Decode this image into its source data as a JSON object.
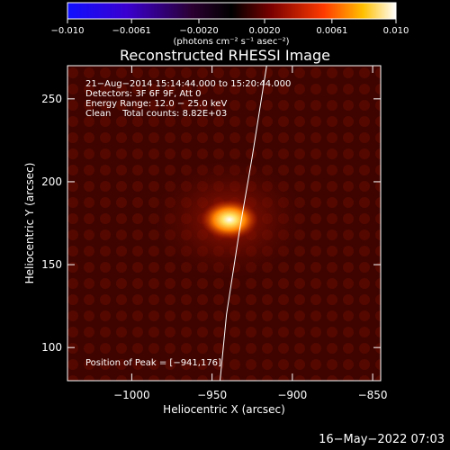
{
  "chart_data": {
    "type": "heatmap",
    "title": "Reconstructed RHESSI Image",
    "xlabel": "Heliocentric X (arcsec)",
    "ylabel": "Heliocentric Y (arcsec)",
    "xlim": [
      -1040,
      -845
    ],
    "ylim": [
      80,
      270
    ],
    "xticks": [
      -1000,
      -950,
      -900,
      -850
    ],
    "yticks": [
      100,
      150,
      200,
      250
    ],
    "colorbar": {
      "ticks": [
        -0.01,
        -0.0061,
        -0.002,
        0.002,
        0.0061,
        0.01
      ],
      "tick_labels": [
        "−0.010",
        "−0.0061",
        "−0.0020",
        "0.0020",
        "0.0061",
        "0.010"
      ],
      "units": "(photons cm⁻² s⁻¹ asec⁻²)",
      "colormap": "rainbow-hot"
    },
    "peak": {
      "x": -941,
      "y": 176
    },
    "limb_points": [
      [
        -945,
        80
      ],
      [
        -941,
        120
      ],
      [
        -933,
        170
      ],
      [
        -925,
        215
      ],
      [
        -916,
        270
      ]
    ]
  },
  "annotations": {
    "line1": "21−Aug−2014 15:14:44.000 to 15:20:44.000",
    "line2": "Detectors: 3F 6F 9F, Att 0",
    "line3": "Energy Range: 12.0 − 25.0 keV",
    "line4": "Clean    Total counts: 8.82E+03",
    "peak_label": "Position of Peak = [−941,176]"
  },
  "timestamp": "16−May−2022 07:03",
  "labels": {
    "title": "Reconstructed RHESSI Image",
    "xlabel": "Heliocentric X (arcsec)",
    "ylabel": "Heliocentric Y (arcsec)",
    "cb_units": "(photons cm⁻² s⁻¹ asec⁻²)"
  }
}
